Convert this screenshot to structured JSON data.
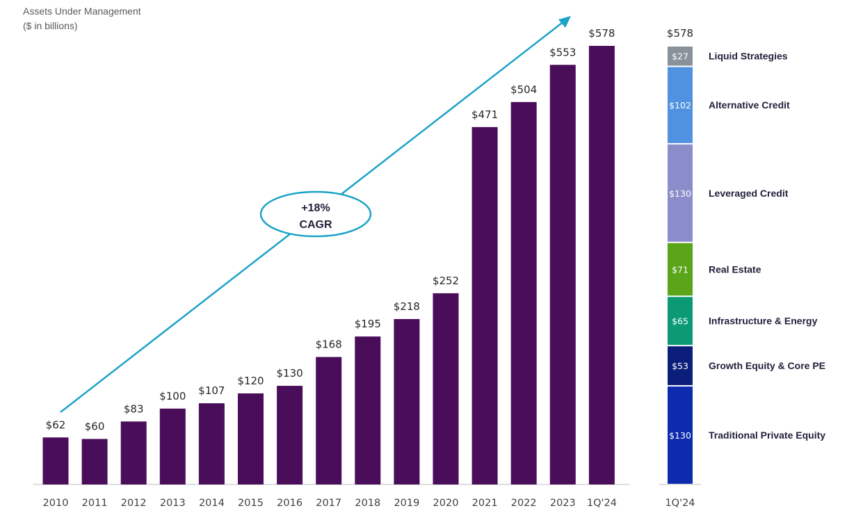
{
  "chart_data": [
    {
      "type": "bar",
      "title": "Assets Under Management",
      "subtitle": "($ in billions)",
      "categories": [
        "2010",
        "2011",
        "2012",
        "2013",
        "2014",
        "2015",
        "2016",
        "2017",
        "2018",
        "2019",
        "2020",
        "2021",
        "2022",
        "2023",
        "1Q'24"
      ],
      "values": [
        62,
        60,
        83,
        100,
        107,
        120,
        130,
        168,
        195,
        218,
        252,
        471,
        504,
        553,
        578
      ],
      "value_labels": [
        "$62",
        "$60",
        "$83",
        "$100",
        "$107",
        "$120",
        "$130",
        "$168",
        "$195",
        "$218",
        "$252",
        "$471",
        "$504",
        "$553",
        "$578"
      ],
      "ylim": [
        0,
        578
      ],
      "grid": false,
      "bar_color": "#4a0d5a",
      "annotation": {
        "line1": "+18%",
        "line2": "CAGR",
        "color": "#1aa3c6"
      }
    },
    {
      "type": "stacked-bar",
      "category": "1Q'24",
      "total_label": "$578",
      "segments": [
        {
          "name": "Traditional Private Equity",
          "value": 130,
          "label": "$130",
          "color": "#0c2cad"
        },
        {
          "name": "Growth Equity & Core PE",
          "value": 53,
          "label": "$53",
          "color": "#0b1f7a"
        },
        {
          "name": "Infrastructure & Energy",
          "value": 65,
          "label": "$65",
          "color": "#0b9a74"
        },
        {
          "name": "Real Estate",
          "value": 71,
          "label": "$71",
          "color": "#5aa51a"
        },
        {
          "name": "Leveraged Credit",
          "value": 130,
          "label": "$130",
          "color": "#8b8dca"
        },
        {
          "name": "Alternative Credit",
          "value": 102,
          "label": "$102",
          "color": "#5192e0"
        },
        {
          "name": "Liquid Strategies",
          "value": 27,
          "label": "$27",
          "color": "#8a9299"
        }
      ]
    }
  ]
}
